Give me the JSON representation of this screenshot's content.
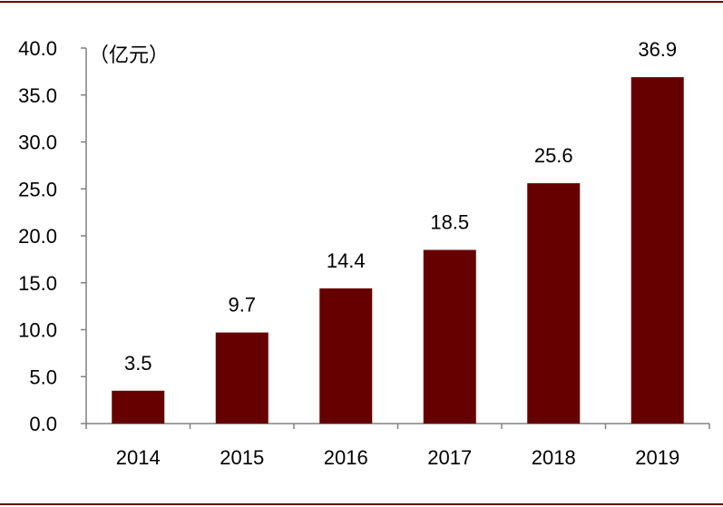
{
  "colors": {
    "bar": "#660000",
    "frame_line": "#660000",
    "axis": "#808080",
    "text": "#000000"
  },
  "chart_data": {
    "type": "bar",
    "unit_label": "（亿元）",
    "categories": [
      "2014",
      "2015",
      "2016",
      "2017",
      "2018",
      "2019"
    ],
    "values": [
      3.5,
      9.7,
      14.4,
      18.5,
      25.6,
      36.9
    ],
    "value_labels": [
      "3.5",
      "9.7",
      "14.4",
      "18.5",
      "25.6",
      "36.9"
    ],
    "y_ticks": [
      "0.0",
      "5.0",
      "10.0",
      "15.0",
      "20.0",
      "25.0",
      "30.0",
      "35.0",
      "40.0"
    ],
    "ylim": [
      0,
      40
    ],
    "grid": false,
    "legend": "none"
  }
}
